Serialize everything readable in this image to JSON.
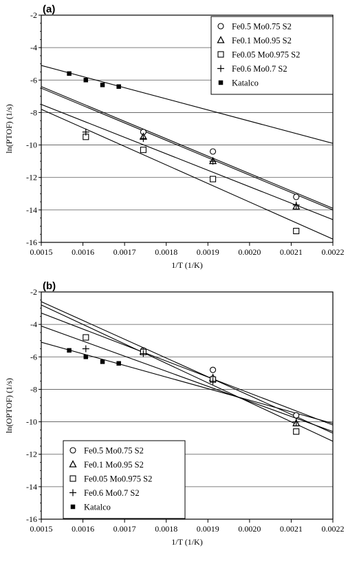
{
  "chart_data": [
    {
      "type": "scatter",
      "panel": "(a)",
      "xlabel": "1/T  (1/K)",
      "ylabel": "ln(PTOF)  (1/s)",
      "xlim": [
        0.0015,
        0.0022
      ],
      "ylim": [
        -16,
        -2
      ],
      "xticks": [
        "0.0015",
        "0.0016",
        "0.0017",
        "0.0018",
        "0.0019",
        "0.0020",
        "0.0021",
        "0.0022"
      ],
      "yticks": [
        "-2",
        "-4",
        "-6",
        "-8",
        "-10",
        "-12",
        "-14",
        "-16"
      ],
      "grid": "horizontal",
      "legend_position": "top-right",
      "series": [
        {
          "name": "Fe0.5 Mo0.75 S2",
          "marker": "circle",
          "points": [
            [
              0.001745,
              -9.2
            ],
            [
              0.001912,
              -10.4
            ],
            [
              0.002112,
              -13.2
            ]
          ],
          "fit": [
            [
              0.0015,
              -6.4
            ],
            [
              0.0022,
              -13.9
            ]
          ]
        },
        {
          "name": "Fe0.1 Mo0.95 S2",
          "marker": "triangle",
          "points": [
            [
              0.001745,
              -9.5
            ],
            [
              0.001912,
              -11.0
            ],
            [
              0.002112,
              -13.8
            ]
          ],
          "fit": [
            [
              0.0015,
              -6.5
            ],
            [
              0.0022,
              -14.0
            ]
          ]
        },
        {
          "name": "Fe0.05 Mo0.975 S2",
          "marker": "square",
          "points": [
            [
              0.001607,
              -9.5
            ],
            [
              0.001745,
              -10.3
            ],
            [
              0.001912,
              -12.1
            ],
            [
              0.002112,
              -15.3
            ]
          ],
          "fit": [
            [
              0.0015,
              -7.8
            ],
            [
              0.0022,
              -15.8
            ]
          ]
        },
        {
          "name": "Fe0.6 Mo0.7 S2",
          "marker": "plus",
          "points": [
            [
              0.001607,
              -9.2
            ],
            [
              0.001745,
              -9.6
            ],
            [
              0.001912,
              -11.0
            ],
            [
              0.002112,
              -13.7
            ]
          ],
          "fit": [
            [
              0.0015,
              -7.5
            ],
            [
              0.0022,
              -14.6
            ]
          ]
        },
        {
          "name": "Katalco",
          "marker": "filled-square",
          "points": [
            [
              0.001567,
              -5.6
            ],
            [
              0.001607,
              -6.0
            ],
            [
              0.001647,
              -6.3
            ],
            [
              0.001686,
              -6.4
            ]
          ],
          "fit": [
            [
              0.0015,
              -5.1
            ],
            [
              0.0022,
              -9.9
            ]
          ]
        }
      ]
    },
    {
      "type": "scatter",
      "panel": "(b)",
      "xlabel": "1/T  (1/K)",
      "ylabel": "ln(OPTOF)  (1/s)",
      "xlim": [
        0.0015,
        0.0022
      ],
      "ylim": [
        -16,
        -2
      ],
      "xticks": [
        "0.0015",
        "0.0016",
        "0.0017",
        "0.0018",
        "0.0019",
        "0.0020",
        "0.0021",
        "0.0022"
      ],
      "yticks": [
        "-2",
        "-4",
        "-6",
        "-8",
        "-10",
        "-12",
        "-14",
        "-16"
      ],
      "grid": "horizontal",
      "legend_position": "bottom-left",
      "series": [
        {
          "name": "Fe0.5 Mo0.75 S2",
          "marker": "circle",
          "points": [
            [
              0.001745,
              -5.6
            ],
            [
              0.001912,
              -6.8
            ],
            [
              0.002112,
              -9.6
            ]
          ],
          "fit": [
            [
              0.0015,
              -3.3
            ],
            [
              0.0022,
              -10.2
            ]
          ]
        },
        {
          "name": "Fe0.1 Mo0.95 S2",
          "marker": "triangle",
          "points": [
            [
              0.001745,
              -5.7
            ],
            [
              0.001912,
              -7.3
            ],
            [
              0.002112,
              -10.1
            ]
          ],
          "fit": [
            [
              0.0015,
              -2.6
            ],
            [
              0.0022,
              -10.7
            ]
          ]
        },
        {
          "name": "Fe0.05 Mo0.975 S2",
          "marker": "square",
          "points": [
            [
              0.001607,
              -4.8
            ],
            [
              0.001745,
              -5.7
            ],
            [
              0.001912,
              -7.4
            ],
            [
              0.002112,
              -10.6
            ]
          ],
          "fit": [
            [
              0.0015,
              -2.8
            ],
            [
              0.0022,
              -11.2
            ]
          ]
        },
        {
          "name": "Fe0.6 Mo0.7 S2",
          "marker": "plus",
          "points": [
            [
              0.001607,
              -5.5
            ],
            [
              0.001745,
              -5.8
            ],
            [
              0.001912,
              -7.5
            ],
            [
              0.002112,
              -10.0
            ]
          ],
          "fit": [
            [
              0.0015,
              -4.1
            ],
            [
              0.0022,
              -10.6
            ]
          ]
        },
        {
          "name": "Katalco",
          "marker": "filled-square",
          "points": [
            [
              0.001567,
              -5.6
            ],
            [
              0.001607,
              -6.0
            ],
            [
              0.001647,
              -6.3
            ],
            [
              0.001686,
              -6.4
            ]
          ],
          "fit": [
            [
              0.0015,
              -5.1
            ],
            [
              0.0022,
              -10.1
            ]
          ]
        }
      ]
    }
  ]
}
